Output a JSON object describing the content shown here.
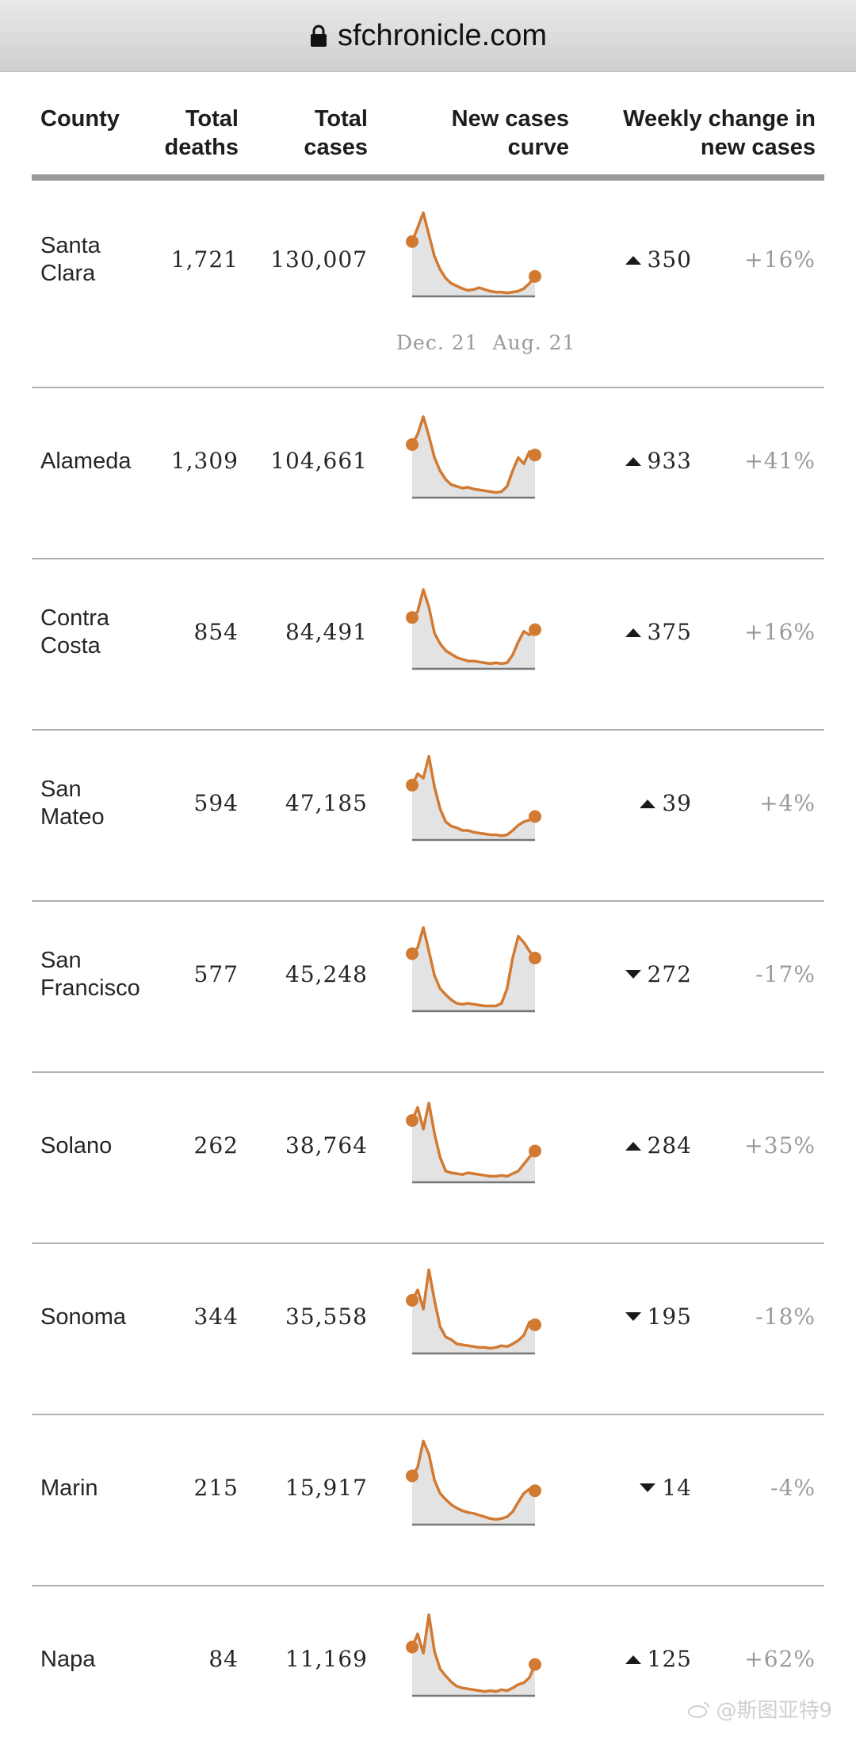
{
  "browser": {
    "url": "sfchronicle.com"
  },
  "table": {
    "headers": {
      "county": "County",
      "deaths": "Total\ndeaths",
      "cases": "Total\ncases",
      "curve": "New cases\ncurve",
      "weekly": "Weekly change in\nnew cases"
    },
    "axis": {
      "start": "Dec. 21",
      "end": "Aug. 21"
    },
    "rows": [
      {
        "county": "Santa\nClara",
        "deaths": "1,721",
        "cases": "130,007",
        "direction": "up",
        "change": "350",
        "pct": "+16%"
      },
      {
        "county": "Alameda",
        "deaths": "1,309",
        "cases": "104,661",
        "direction": "up",
        "change": "933",
        "pct": "+41%"
      },
      {
        "county": "Contra\nCosta",
        "deaths": "854",
        "cases": "84,491",
        "direction": "up",
        "change": "375",
        "pct": "+16%"
      },
      {
        "county": "San\nMateo",
        "deaths": "594",
        "cases": "47,185",
        "direction": "up",
        "change": "39",
        "pct": "+4%"
      },
      {
        "county": "San\nFrancisco",
        "deaths": "577",
        "cases": "45,248",
        "direction": "down",
        "change": "272",
        "pct": "-17%"
      },
      {
        "county": "Solano",
        "deaths": "262",
        "cases": "38,764",
        "direction": "up",
        "change": "284",
        "pct": "+35%"
      },
      {
        "county": "Sonoma",
        "deaths": "344",
        "cases": "35,558",
        "direction": "down",
        "change": "195",
        "pct": "-18%"
      },
      {
        "county": "Marin",
        "deaths": "215",
        "cases": "15,917",
        "direction": "down",
        "change": "14",
        "pct": "-4%"
      },
      {
        "county": "Napa",
        "deaths": "84",
        "cases": "11,169",
        "direction": "up",
        "change": "125",
        "pct": "+62%"
      }
    ]
  },
  "curves": [
    [
      0.62,
      0.78,
      0.95,
      0.7,
      0.45,
      0.3,
      0.2,
      0.14,
      0.11,
      0.08,
      0.06,
      0.07,
      0.09,
      0.07,
      0.05,
      0.04,
      0.04,
      0.03,
      0.04,
      0.05,
      0.08,
      0.14,
      0.22
    ],
    [
      0.6,
      0.72,
      0.92,
      0.7,
      0.45,
      0.3,
      0.2,
      0.14,
      0.12,
      0.1,
      0.11,
      0.09,
      0.08,
      0.07,
      0.06,
      0.05,
      0.06,
      0.12,
      0.3,
      0.45,
      0.38,
      0.52,
      0.48
    ],
    [
      0.58,
      0.65,
      0.9,
      0.7,
      0.4,
      0.28,
      0.2,
      0.16,
      0.12,
      0.1,
      0.08,
      0.08,
      0.07,
      0.06,
      0.05,
      0.06,
      0.05,
      0.06,
      0.15,
      0.3,
      0.42,
      0.38,
      0.44
    ],
    [
      0.62,
      0.75,
      0.7,
      0.95,
      0.6,
      0.35,
      0.2,
      0.15,
      0.13,
      0.1,
      0.1,
      0.08,
      0.07,
      0.06,
      0.05,
      0.05,
      0.04,
      0.05,
      0.1,
      0.16,
      0.2,
      0.22,
      0.26
    ],
    [
      0.65,
      0.72,
      0.95,
      0.68,
      0.4,
      0.25,
      0.18,
      0.12,
      0.08,
      0.07,
      0.08,
      0.07,
      0.06,
      0.05,
      0.05,
      0.05,
      0.08,
      0.25,
      0.6,
      0.85,
      0.78,
      0.68,
      0.6
    ],
    [
      0.7,
      0.85,
      0.6,
      0.9,
      0.55,
      0.28,
      0.12,
      0.1,
      0.09,
      0.08,
      0.1,
      0.09,
      0.08,
      0.07,
      0.06,
      0.06,
      0.07,
      0.06,
      0.09,
      0.12,
      0.2,
      0.28,
      0.35
    ],
    [
      0.6,
      0.72,
      0.5,
      0.95,
      0.6,
      0.3,
      0.18,
      0.15,
      0.1,
      0.09,
      0.08,
      0.07,
      0.06,
      0.06,
      0.05,
      0.06,
      0.08,
      0.07,
      0.1,
      0.14,
      0.2,
      0.35,
      0.32
    ],
    [
      0.55,
      0.65,
      0.95,
      0.8,
      0.5,
      0.35,
      0.28,
      0.22,
      0.18,
      0.15,
      0.13,
      0.12,
      0.1,
      0.08,
      0.06,
      0.05,
      0.06,
      0.08,
      0.14,
      0.25,
      0.35,
      0.4,
      0.38
    ],
    [
      0.55,
      0.7,
      0.48,
      0.92,
      0.5,
      0.3,
      0.22,
      0.15,
      0.1,
      0.08,
      0.07,
      0.06,
      0.05,
      0.04,
      0.05,
      0.04,
      0.06,
      0.05,
      0.08,
      0.12,
      0.14,
      0.2,
      0.35
    ]
  ],
  "colors": {
    "curve": "#d27a32",
    "area": "#e3e3e3",
    "baseline": "#777777"
  },
  "watermark": "@斯图亚特9"
}
